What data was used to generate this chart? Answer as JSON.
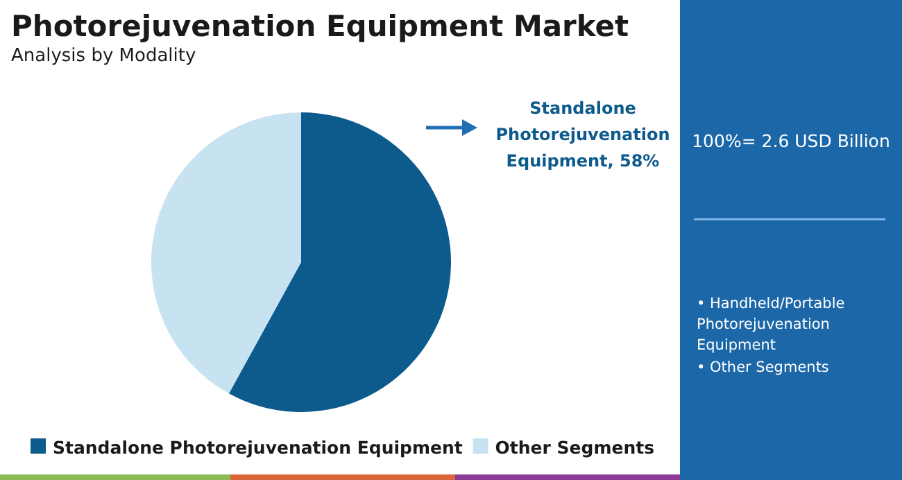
{
  "chart_data": {
    "type": "pie",
    "title": "Photorejuvenation Equipment Market",
    "subtitle": "Analysis by Modality",
    "categories": [
      "Standalone Photorejuvenation Equipment",
      "Other Segments"
    ],
    "values": [
      58,
      42
    ],
    "colors": [
      "#0d5a8c",
      "#c7e2f0"
    ],
    "value_labels": [
      "Standalone Photorejuvenation Equipment, 58%",
      null
    ],
    "legend": "bottom",
    "annotations": [
      "100%= 2.6 USD Billion",
      "• Handheld/Portable Photorejuvenation Equipment",
      "• Other Segments"
    ]
  }
}
